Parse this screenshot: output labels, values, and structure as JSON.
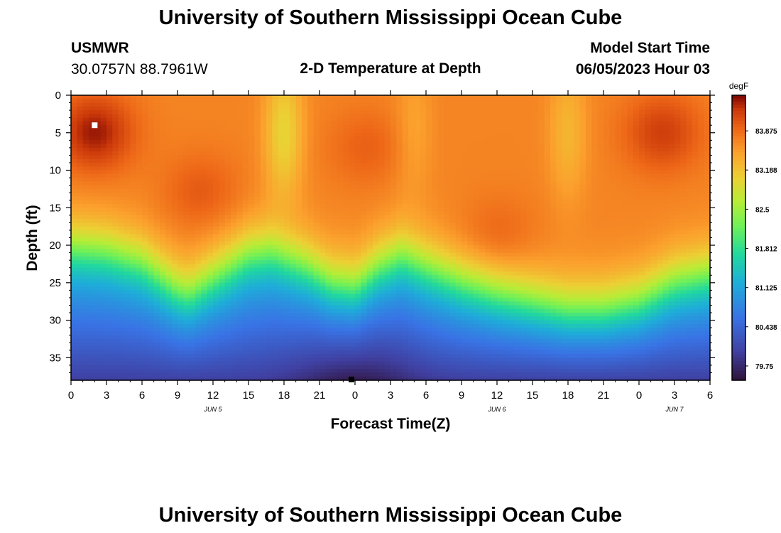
{
  "header": {
    "title": "University of Southern Mississippi Ocean Cube",
    "station": "USMWR",
    "coords": "30.0757N  88.7961W",
    "subtitle": "2-D Temperature at Depth",
    "model_label": "Model Start Time",
    "model_time": "06/05/2023 Hour 03"
  },
  "footer": {
    "title": "University of Southern Mississippi Ocean Cube"
  },
  "chart_data": {
    "type": "heatmap",
    "title": "2-D Temperature at Depth",
    "xlabel": "Forecast Time(Z)",
    "ylabel": "Depth (ft)",
    "x_range_hours": [
      0,
      54
    ],
    "y_range_ft": [
      0,
      38
    ],
    "x_ticks": [
      {
        "hour": 0,
        "label": "0"
      },
      {
        "hour": 3,
        "label": "3"
      },
      {
        "hour": 6,
        "label": "6"
      },
      {
        "hour": 9,
        "label": "9"
      },
      {
        "hour": 12,
        "label": "12"
      },
      {
        "hour": 15,
        "label": "15"
      },
      {
        "hour": 18,
        "label": "18"
      },
      {
        "hour": 21,
        "label": "21"
      },
      {
        "hour": 24,
        "label": "0"
      },
      {
        "hour": 27,
        "label": "3"
      },
      {
        "hour": 30,
        "label": "6"
      },
      {
        "hour": 33,
        "label": "9"
      },
      {
        "hour": 36,
        "label": "12"
      },
      {
        "hour": 39,
        "label": "15"
      },
      {
        "hour": 42,
        "label": "18"
      },
      {
        "hour": 45,
        "label": "21"
      },
      {
        "hour": 48,
        "label": "0"
      },
      {
        "hour": 51,
        "label": "3"
      },
      {
        "hour": 54,
        "label": "6"
      }
    ],
    "y_ticks": [
      0,
      5,
      10,
      15,
      20,
      25,
      30,
      35
    ],
    "date_labels": [
      {
        "hour": 12,
        "label": "JUN 5"
      },
      {
        "hour": 36,
        "label": "JUN 6"
      },
      {
        "hour": 51,
        "label": "JUN 7"
      }
    ],
    "colorbar": {
      "unit": "degF",
      "min": 79.5,
      "max": 84.5,
      "ticks": [
        83.875,
        83.188,
        82.5,
        81.812,
        81.125,
        80.438,
        79.75
      ]
    },
    "thermocline_depth_ft": [
      {
        "hour": 0,
        "depth": 19.5
      },
      {
        "hour": 3,
        "depth": 20
      },
      {
        "hour": 6,
        "depth": 21.5
      },
      {
        "hour": 9,
        "depth": 25
      },
      {
        "hour": 10,
        "depth": 25.5
      },
      {
        "hour": 12,
        "depth": 23.5
      },
      {
        "hour": 15,
        "depth": 20.5
      },
      {
        "hour": 17,
        "depth": 20
      },
      {
        "hour": 20,
        "depth": 22
      },
      {
        "hour": 22,
        "depth": 24
      },
      {
        "hour": 24,
        "depth": 24.5
      },
      {
        "hour": 26,
        "depth": 22
      },
      {
        "hour": 28,
        "depth": 20.5
      },
      {
        "hour": 30,
        "depth": 22
      },
      {
        "hour": 33,
        "depth": 24
      },
      {
        "hour": 36,
        "depth": 25.5
      },
      {
        "hour": 39,
        "depth": 26.5
      },
      {
        "hour": 42,
        "depth": 27.5
      },
      {
        "hour": 45,
        "depth": 27.5
      },
      {
        "hour": 48,
        "depth": 26.5
      },
      {
        "hour": 51,
        "depth": 24
      },
      {
        "hour": 54,
        "depth": 23
      }
    ],
    "warm_cores": [
      {
        "hour": 2,
        "depth": 5,
        "temp": 84.4
      },
      {
        "hour": 11,
        "depth": 13,
        "temp": 84.0
      },
      {
        "hour": 25,
        "depth": 7,
        "temp": 83.95
      },
      {
        "hour": 36,
        "depth": 19,
        "temp": 83.95
      },
      {
        "hour": 50,
        "depth": 5,
        "temp": 84.2
      }
    ],
    "cool_bands": [
      {
        "hour": 18,
        "temp": 83.0
      },
      {
        "hour": 29,
        "temp": 83.45
      },
      {
        "hour": 42,
        "temp": 83.3
      }
    ],
    "bottom_min": {
      "hour": 24,
      "depth": 38,
      "temp": 79.6
    },
    "markers": [
      {
        "hour": 2,
        "depth": 4,
        "color": "#ffffff"
      },
      {
        "hour": 23.7,
        "depth": 37.9,
        "color": "#000000"
      }
    ]
  }
}
